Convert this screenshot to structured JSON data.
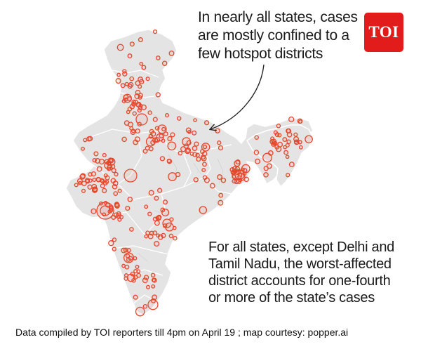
{
  "annotation_top": {
    "lines": [
      "In nearly all states, cases",
      "are mostly confined to a",
      "few hotspot districts"
    ]
  },
  "annotation_bottom": {
    "lines": [
      "For all states, except Delhi and",
      "Tamil Nadu, the worst-affected",
      "district accounts for one-fourth",
      "or more of the state’s cases"
    ]
  },
  "logo": {
    "text": "TOI",
    "color": "#e21b1b"
  },
  "credit": "Data compiled by TOI reporters till 4pm on April 19 ; map  courtesy: popper.ai",
  "colors": {
    "land": "#e4e4e4",
    "border": "#ffffff",
    "marker": "#e8462b",
    "arrow": "#222222"
  },
  "icons": {
    "arrow": "curved-arrow-icon",
    "logo": "toi-logo"
  }
}
